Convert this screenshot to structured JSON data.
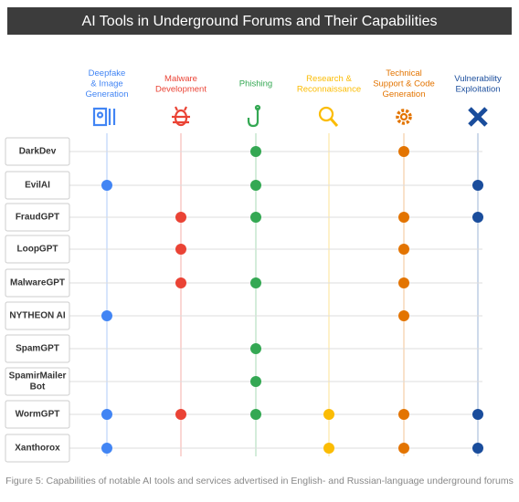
{
  "title": "AI Tools in Underground Forums and Their Capabilities",
  "columns": [
    {
      "label": [
        "Deepfake",
        "& Image",
        "Generation"
      ],
      "color": "#4285f4"
    },
    {
      "label": [
        "Malware",
        "Development"
      ],
      "color": "#ea4335"
    },
    {
      "label": [
        "Phishing"
      ],
      "color": "#34a853"
    },
    {
      "label": [
        "Research &",
        "Reconnaissance"
      ],
      "color": "#fbbc04"
    },
    {
      "label": [
        "Technical",
        "Support & Code",
        "Generation"
      ],
      "color": "#e37400"
    },
    {
      "label": [
        "Vulnerability",
        "Exploitation"
      ],
      "color": "#1a4d9c"
    }
  ],
  "rows": [
    {
      "name": [
        "DarkDev"
      ],
      "has": [
        false,
        false,
        true,
        false,
        true,
        false
      ]
    },
    {
      "name": [
        "EvilAI"
      ],
      "has": [
        true,
        false,
        true,
        false,
        false,
        true
      ]
    },
    {
      "name": [
        "FraudGPT"
      ],
      "has": [
        false,
        true,
        true,
        false,
        true,
        true
      ]
    },
    {
      "name": [
        "LoopGPT"
      ],
      "has": [
        false,
        true,
        false,
        false,
        true,
        false
      ]
    },
    {
      "name": [
        "MalwareGPT"
      ],
      "has": [
        false,
        true,
        true,
        false,
        true,
        false
      ]
    },
    {
      "name": [
        "NYTHEON AI"
      ],
      "has": [
        true,
        false,
        false,
        false,
        true,
        false
      ]
    },
    {
      "name": [
        "SpamGPT"
      ],
      "has": [
        false,
        false,
        true,
        false,
        false,
        false
      ]
    },
    {
      "name": [
        "SpamirMailer",
        "Bot"
      ],
      "has": [
        false,
        false,
        true,
        false,
        false,
        false
      ]
    },
    {
      "name": [
        "WormGPT"
      ],
      "has": [
        true,
        true,
        true,
        true,
        true,
        true
      ]
    },
    {
      "name": [
        "Xanthorox"
      ],
      "has": [
        true,
        false,
        false,
        true,
        true,
        true
      ]
    }
  ],
  "caption": "Figure 5: Capabilities of notable AI tools and services advertised in English- and Russian-language underground forums"
}
